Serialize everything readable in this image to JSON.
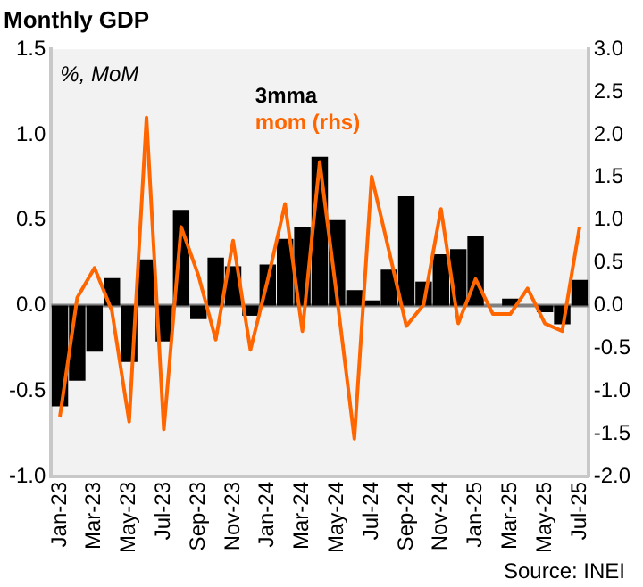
{
  "chart_data": {
    "type": "bar",
    "title": "Monthly GDP",
    "annotations": [
      "%, MoM",
      "Source: INEI"
    ],
    "categories": [
      "Jan-23",
      null,
      "Mar-23",
      null,
      "May-23",
      null,
      "Jul-23",
      null,
      "Sep-23",
      null,
      "Nov-23",
      null,
      "Jan-24",
      null,
      "Mar-24",
      null,
      "May-24",
      null,
      "Jul-24",
      null,
      "Sep-24",
      null,
      "Nov-24",
      null,
      "Jan-25",
      null,
      "Mar-25",
      null,
      "May-25",
      null,
      "Jul-25"
    ],
    "series": [
      {
        "name": "3mma",
        "color": "#000000",
        "values": [
          -0.59,
          -0.44,
          -0.27,
          0.16,
          -0.33,
          0.27,
          -0.21,
          0.56,
          -0.08,
          0.28,
          0.23,
          -0.06,
          0.24,
          0.39,
          0.46,
          0.87,
          0.5,
          0.09,
          0.03,
          0.21,
          0.64,
          0.14,
          0.3,
          0.33,
          0.41,
          null,
          0.04,
          0.0,
          -0.04,
          -0.11,
          0.15
        ]
      },
      {
        "name": "mom (rhs)",
        "type": "line",
        "axis": "y2",
        "color": "#ff6600",
        "values": [
          -1.3,
          0.09,
          0.44,
          -0.06,
          -1.36,
          2.2,
          -1.45,
          0.92,
          0.35,
          -0.4,
          0.76,
          -0.52,
          0.3,
          1.19,
          -0.3,
          1.68,
          0.09,
          -1.56,
          1.51,
          0.64,
          -0.24,
          0.01,
          1.13,
          -0.21,
          0.31,
          -0.1,
          -0.1,
          0.2,
          -0.21,
          -0.3,
          0.92
        ]
      }
    ],
    "ylim": [
      -1.0,
      1.5
    ],
    "yticks": [
      {
        "value": -1.0,
        "label": "-1.0"
      },
      {
        "value": -0.5,
        "label": "-0.5"
      },
      {
        "value": 0,
        "label": "0.0"
      },
      {
        "value": 0.5,
        "label": "0.5"
      },
      {
        "value": 1.0,
        "label": "1.0"
      },
      {
        "value": 1.5,
        "label": "1.5"
      }
    ],
    "y2lim": [
      -2.0,
      3.0
    ],
    "y2ticks": [
      {
        "value": -2.0,
        "label": "-2.0"
      },
      {
        "value": -1.5,
        "label": "-1.5"
      },
      {
        "value": -1.0,
        "label": "-1.0"
      },
      {
        "value": -0.5,
        "label": "-0.5"
      },
      {
        "value": 0,
        "label": "0.0"
      },
      {
        "value": 0.5,
        "label": "0.5"
      },
      {
        "value": 1.0,
        "label": "1.0"
      },
      {
        "value": 1.5,
        "label": "1.5"
      },
      {
        "value": 2.0,
        "label": "2.0"
      },
      {
        "value": 2.5,
        "label": "2.5"
      },
      {
        "value": 3.0,
        "label": "3.0"
      }
    ],
    "ref_lines": [
      {
        "axis": "y",
        "value": 0,
        "color": "#808080"
      }
    ],
    "grid": false,
    "legend": "top",
    "marker": "none",
    "line_style": "solid"
  }
}
